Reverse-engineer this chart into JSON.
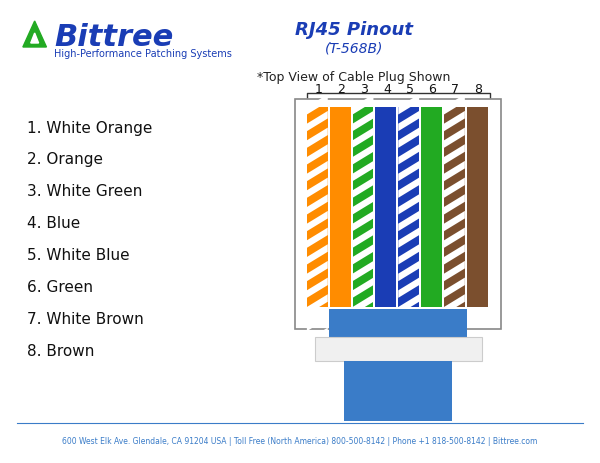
{
  "title": "RJ45 Pinout",
  "subtitle": "(T-568B)",
  "top_note": "*Top View of Cable Plug Shown",
  "footer": "600 West Elk Ave. Glendale, CA 91204 USA | Toll Free (North America) 800-500-8142 | Phone +1 818-500-8142 | Bittree.com",
  "bittree_text": "Bittree",
  "bittree_tagline": "High-Performance Patching Systems",
  "pin_labels": [
    "1",
    "2",
    "3",
    "4",
    "5",
    "6",
    "7",
    "8"
  ],
  "wire_labels": [
    "1. White Orange",
    "2. Orange",
    "3. White Green",
    "4. Blue",
    "5. White Blue",
    "6. Green",
    "7. White Brown",
    "8. Brown"
  ],
  "wire_colors": [
    [
      "#FF8C00",
      "#FFFFFF"
    ],
    [
      "#FF8C00",
      "#FF8C00"
    ],
    [
      "#22AA22",
      "#FFFFFF"
    ],
    [
      "#1A3DB5",
      "#1A3DB5"
    ],
    [
      "#1A3DB5",
      "#FFFFFF"
    ],
    [
      "#22AA22",
      "#22AA22"
    ],
    [
      "#7B4F2E",
      "#FFFFFF"
    ],
    [
      "#7B4F2E",
      "#7B4F2E"
    ]
  ],
  "connector_color": "#3A7CC8",
  "connector_border": "#888888",
  "background_color": "#FFFFFF",
  "title_color": "#1A3DB5",
  "label_color": "#1A3DB5",
  "bittree_color": "#1A3DB5",
  "triangle_color": "#22AA22"
}
